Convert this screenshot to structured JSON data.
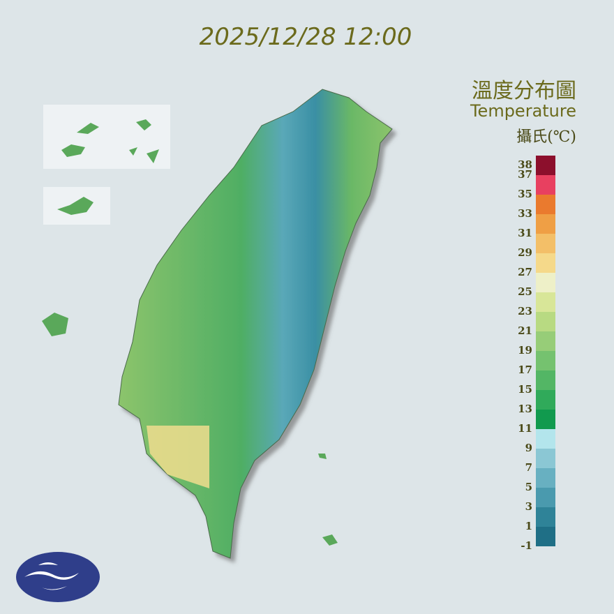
{
  "timestamp": "2025/12/28 12:00",
  "title_zh": "溫度分布圖",
  "title_en": "Temperature",
  "unit": "攝氏(℃)",
  "legend": {
    "labels": [
      38,
      37,
      35,
      33,
      31,
      29,
      27,
      25,
      23,
      21,
      19,
      17,
      15,
      13,
      11,
      9,
      7,
      5,
      3,
      1,
      -1
    ],
    "colors": [
      "#1f6f86",
      "#2f8398",
      "#4a9aae",
      "#68b0c1",
      "#8bc7d4",
      "#b3e5ec",
      "#119a4e",
      "#30aa5a",
      "#53b665",
      "#75c26f",
      "#97cd78",
      "#b8da82",
      "#d8e698",
      "#eef0c8",
      "#f5d98a",
      "#f3bf68",
      "#ef9f45",
      "#ea7a2e",
      "#e84060",
      "#8c0f2c"
    ]
  }
}
